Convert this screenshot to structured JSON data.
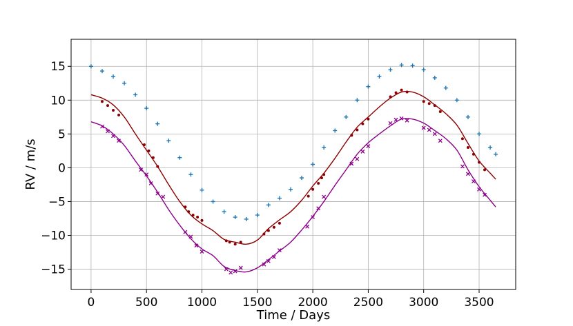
{
  "chart_data": {
    "type": "scatter",
    "title": "",
    "xlabel": "Time / Days",
    "ylabel": "RV / m/s",
    "xlim": [
      -180,
      3830
    ],
    "ylim": [
      -18,
      19
    ],
    "xticks": [
      0,
      500,
      1000,
      1500,
      2000,
      2500,
      3000,
      3500
    ],
    "xtick_labels": [
      "0",
      "500",
      "1000",
      "1500",
      "2000",
      "2500",
      "3000",
      "3500"
    ],
    "yticks": [
      -15,
      -10,
      -5,
      0,
      5,
      10,
      15
    ],
    "ytick_labels": [
      "−15",
      "−10",
      "−5",
      "0",
      "5",
      "10",
      "15"
    ],
    "grid": true,
    "legend": "none",
    "series": [
      {
        "marker": "plus",
        "color": "#1f77b4",
        "x": [
          0,
          100,
          200,
          300,
          400,
          500,
          600,
          700,
          800,
          900,
          1000,
          1100,
          1200,
          1300,
          1400,
          1500,
          1600,
          1700,
          1800,
          1900,
          2000,
          2100,
          2200,
          2300,
          2400,
          2500,
          2600,
          2700,
          2800,
          2900,
          3000,
          3100,
          3200,
          3300,
          3400,
          3500,
          3600,
          3650
        ],
        "y": [
          15.0,
          14.3,
          13.5,
          12.5,
          10.8,
          8.8,
          6.5,
          4.0,
          1.5,
          -1.0,
          -3.3,
          -5.0,
          -6.5,
          -7.3,
          -7.6,
          -7.0,
          -5.5,
          -4.5,
          -3.2,
          -1.5,
          0.5,
          3.0,
          5.5,
          7.5,
          10.0,
          12.0,
          13.5,
          14.5,
          15.2,
          15.1,
          14.5,
          13.3,
          11.8,
          10.0,
          7.5,
          5.0,
          3.0,
          2.0
        ]
      },
      {
        "marker": "dot",
        "color": "#8b0000",
        "x": [
          100,
          150,
          200,
          250,
          480,
          520,
          560,
          600,
          850,
          880,
          920,
          960,
          1000,
          1220,
          1250,
          1300,
          1350,
          1560,
          1600,
          1650,
          1700,
          1960,
          2000,
          2050,
          2080,
          2100,
          2350,
          2400,
          2450,
          2500,
          2700,
          2750,
          2800,
          2850,
          3000,
          3050,
          3100,
          3150,
          3350,
          3400,
          3450,
          3500,
          3550
        ],
        "y": [
          9.8,
          9.2,
          8.5,
          7.8,
          3.4,
          2.5,
          1.5,
          0.2,
          -5.8,
          -6.5,
          -7.0,
          -7.3,
          -7.8,
          -10.8,
          -11.0,
          -11.3,
          -11.0,
          -9.8,
          -9.3,
          -8.8,
          -8.2,
          -4.2,
          -3.2,
          -2.3,
          -1.5,
          -1.0,
          4.8,
          5.6,
          6.5,
          7.2,
          10.5,
          11.1,
          11.5,
          11.2,
          9.8,
          9.5,
          9.2,
          8.3,
          4.3,
          3.0,
          2.0,
          0.8,
          -0.3
        ]
      },
      {
        "marker": "x",
        "color": "#8b008b",
        "x": [
          100,
          150,
          200,
          250,
          450,
          500,
          540,
          600,
          650,
          850,
          900,
          950,
          1000,
          1220,
          1260,
          1300,
          1350,
          1560,
          1600,
          1650,
          1700,
          1950,
          2000,
          2050,
          2100,
          2350,
          2400,
          2450,
          2500,
          2700,
          2750,
          2800,
          2850,
          3000,
          3050,
          3100,
          3150,
          3350,
          3400,
          3450,
          3500,
          3550
        ],
        "y": [
          6.1,
          5.4,
          4.7,
          4.0,
          -0.3,
          -1.0,
          -2.3,
          -3.8,
          -4.3,
          -9.5,
          -10.2,
          -11.5,
          -12.4,
          -15.0,
          -15.5,
          -15.3,
          -14.8,
          -14.3,
          -13.8,
          -13.2,
          -12.2,
          -8.7,
          -7.3,
          -6.0,
          -4.3,
          0.6,
          1.3,
          2.4,
          3.2,
          6.6,
          7.1,
          7.3,
          7.0,
          5.9,
          5.6,
          5.0,
          4.0,
          0.2,
          -0.9,
          -2.0,
          -3.2,
          -4.0
        ]
      },
      {
        "type": "line",
        "color": "#8b0000",
        "x": [
          0,
          100,
          200,
          300,
          400,
          500,
          600,
          700,
          800,
          900,
          1000,
          1100,
          1200,
          1300,
          1400,
          1500,
          1600,
          1700,
          1800,
          1900,
          2000,
          2100,
          2200,
          2300,
          2400,
          2500,
          2600,
          2700,
          2800,
          2900,
          3000,
          3100,
          3200,
          3300,
          3400,
          3500,
          3600,
          3650
        ],
        "y": [
          10.8,
          10.3,
          9.3,
          7.5,
          5.0,
          2.6,
          0.2,
          -2.5,
          -5.0,
          -7.0,
          -8.3,
          -9.3,
          -10.6,
          -11.0,
          -11.3,
          -10.7,
          -9.0,
          -7.7,
          -6.5,
          -4.8,
          -2.7,
          -0.8,
          1.4,
          3.8,
          6.0,
          7.5,
          9.0,
          10.3,
          11.2,
          11.2,
          10.5,
          9.3,
          8.0,
          6.3,
          3.6,
          1.0,
          -0.8,
          -1.7
        ]
      },
      {
        "type": "line",
        "color": "#8b008b",
        "x": [
          0,
          100,
          200,
          300,
          400,
          500,
          600,
          700,
          800,
          900,
          1000,
          1100,
          1200,
          1300,
          1400,
          1500,
          1600,
          1700,
          1800,
          1900,
          2000,
          2100,
          2200,
          2300,
          2400,
          2500,
          2600,
          2700,
          2800,
          2900,
          3000,
          3100,
          3200,
          3300,
          3400,
          3500,
          3600,
          3650
        ],
        "y": [
          6.8,
          6.2,
          5.0,
          3.3,
          1.0,
          -1.2,
          -3.6,
          -6.2,
          -8.5,
          -10.5,
          -12.0,
          -13.0,
          -14.6,
          -15.2,
          -15.4,
          -14.8,
          -13.6,
          -12.3,
          -11.0,
          -9.2,
          -7.2,
          -5.0,
          -2.6,
          -0.3,
          2.0,
          3.7,
          5.0,
          6.2,
          7.2,
          7.2,
          6.6,
          5.5,
          4.3,
          2.6,
          -0.3,
          -2.8,
          -4.8,
          -5.8
        ]
      }
    ]
  }
}
